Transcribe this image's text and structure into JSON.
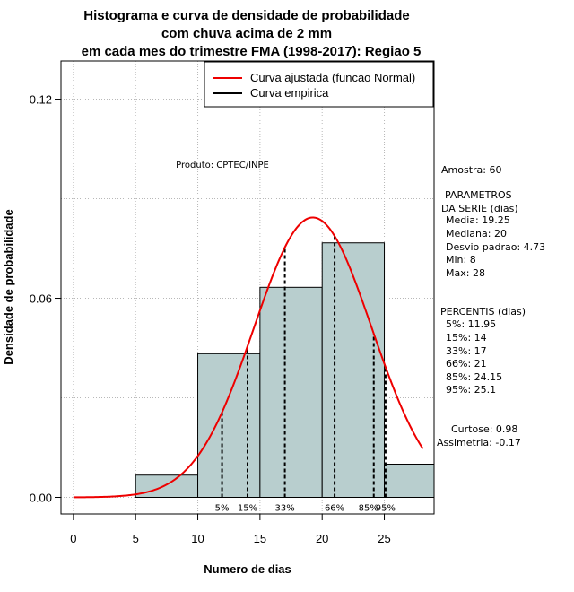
{
  "chart_data": {
    "type": "histogram",
    "title_lines": [
      "Histograma e curva de densidade de probabilidade",
      "com chuva acima de 2 mm",
      "em cada mes do trimestre FMA (1998-2017): Regiao 5"
    ],
    "xlabel": "Numero de dias",
    "ylabel": "Densidade de probabilidade",
    "xlim": [
      -1,
      29
    ],
    "ylim": [
      -0.005,
      0.1315
    ],
    "x_ticks": [
      0,
      5,
      10,
      15,
      20,
      25
    ],
    "x_tick_labels": [
      "0",
      "5",
      "10",
      "15",
      "20",
      "25"
    ],
    "y_ticks": [
      0.0,
      0.06,
      0.12
    ],
    "y_tick_labels": [
      "0.00",
      "0.06",
      "0.12"
    ],
    "grid": true,
    "bins": [
      {
        "start": 5,
        "end": 10,
        "density": 0.0067
      },
      {
        "start": 10,
        "end": 15,
        "density": 0.0433
      },
      {
        "start": 15,
        "end": 20,
        "density": 0.0633
      },
      {
        "start": 20,
        "end": 25,
        "density": 0.0767
      },
      {
        "start": 25,
        "end": 30,
        "density": 0.01
      }
    ],
    "normal_curve": {
      "mean": 19.25,
      "sd": 4.73,
      "x_from": 0,
      "x_to": 28.1,
      "color": "#ee0000"
    },
    "percentile_lines": [
      {
        "label": "5%",
        "x": 11.95
      },
      {
        "label": "15%",
        "x": 14
      },
      {
        "label": "33%",
        "x": 17
      },
      {
        "label": "66%",
        "x": 21
      },
      {
        "label": "85%",
        "x": 24.15
      },
      {
        "label": "95%",
        "x": 25.1
      }
    ],
    "legend": {
      "placement": "top-right",
      "entries": [
        {
          "label": "Curva ajustada (funcao Normal)",
          "color": "#ee0000"
        },
        {
          "label": "Curva empirica",
          "color": "#000000"
        }
      ]
    },
    "annotation": "Produto: CPTEC/INPE",
    "colors": {
      "bar_fill": "#b8cece",
      "bar_stroke": "#000000",
      "grid": "#b8b8b8",
      "curve": "#ee0000"
    }
  },
  "side_panel": {
    "sample": "Amostra: 60",
    "params_title_1": "PARAMETROS",
    "params_title_2": "DA SERIE (dias)",
    "media": "Media: 19.25",
    "mediana": "Mediana: 20",
    "desvio": "Desvio padrao: 4.73",
    "min": "Min: 8",
    "max": "Max: 28",
    "percentis_title": "PERCENTIS (dias)",
    "p5": "5%: 11.95",
    "p15": "15%: 14",
    "p33": "33%: 17",
    "p66": "66%: 21",
    "p85": "85%: 24.15",
    "p95": "95%: 25.1",
    "curtose": "Curtose: 0.98",
    "assimetria": "Assimetria: -0.17"
  }
}
